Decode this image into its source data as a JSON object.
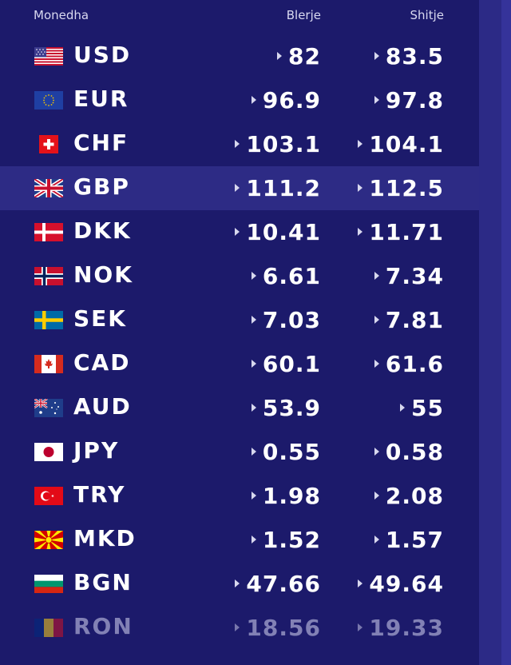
{
  "header": {
    "currency_label": "Monedha",
    "buy_label": "Blerje",
    "sell_label": "Shitje"
  },
  "rows": [
    {
      "code": "USD",
      "buy": "82",
      "sell": "83.5",
      "flag_icon": "us-flag-icon"
    },
    {
      "code": "EUR",
      "buy": "96.9",
      "sell": "97.8",
      "flag_icon": "eu-flag-icon"
    },
    {
      "code": "CHF",
      "buy": "103.1",
      "sell": "104.1",
      "flag_icon": "ch-flag-icon"
    },
    {
      "code": "GBP",
      "buy": "111.2",
      "sell": "112.5",
      "flag_icon": "gb-flag-icon"
    },
    {
      "code": "DKK",
      "buy": "10.41",
      "sell": "11.71",
      "flag_icon": "dk-flag-icon"
    },
    {
      "code": "NOK",
      "buy": "6.61",
      "sell": "7.34",
      "flag_icon": "no-flag-icon"
    },
    {
      "code": "SEK",
      "buy": "7.03",
      "sell": "7.81",
      "flag_icon": "se-flag-icon"
    },
    {
      "code": "CAD",
      "buy": "60.1",
      "sell": "61.6",
      "flag_icon": "ca-flag-icon"
    },
    {
      "code": "AUD",
      "buy": "53.9",
      "sell": "55",
      "flag_icon": "au-flag-icon"
    },
    {
      "code": "JPY",
      "buy": "0.55",
      "sell": "0.58",
      "flag_icon": "jp-flag-icon"
    },
    {
      "code": "TRY",
      "buy": "1.98",
      "sell": "2.08",
      "flag_icon": "tr-flag-icon"
    },
    {
      "code": "MKD",
      "buy": "1.52",
      "sell": "1.57",
      "flag_icon": "mk-flag-icon"
    },
    {
      "code": "BGN",
      "buy": "47.66",
      "sell": "49.64",
      "flag_icon": "bg-flag-icon"
    },
    {
      "code": "RON",
      "buy": "18.56",
      "sell": "19.33",
      "flag_icon": "ro-flag-icon"
    }
  ],
  "colors": {
    "background": "#1c1a6b",
    "highlight_row": "#2d2b85",
    "side_strip": "#2c2a86",
    "text": "#ffffff",
    "faded_text": "#8281b5"
  }
}
